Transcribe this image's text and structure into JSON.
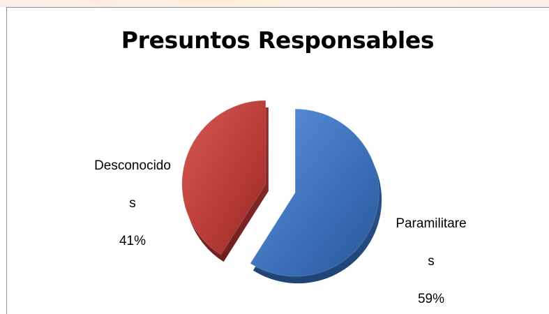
{
  "chart_data": {
    "type": "pie",
    "title": "Presuntos Responsables",
    "slices": [
      {
        "name": "Paramilitares",
        "value": 59,
        "color": "#3f77c2",
        "label_lines": [
          "Paramilitare",
          "s",
          "59%"
        ]
      },
      {
        "name": "Desconocidos",
        "value": 41,
        "color": "#c3413e",
        "label_lines": [
          "Desconocido",
          "s",
          "41%"
        ]
      }
    ],
    "legend": "none",
    "style": "3d-exploded"
  }
}
